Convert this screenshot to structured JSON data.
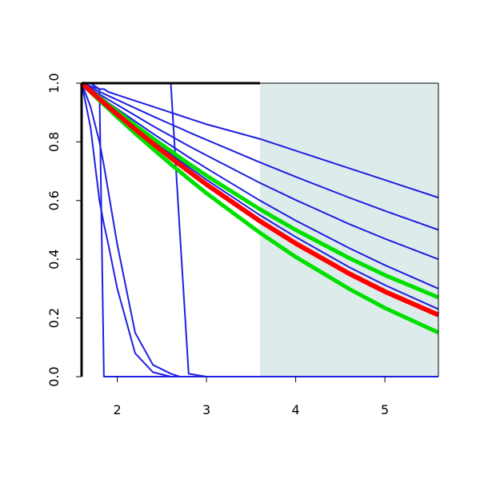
{
  "chart_data": {
    "type": "line",
    "x": [
      1.6,
      1.7,
      1.8,
      1.85,
      1.9,
      2.0,
      2.2,
      2.4,
      2.6,
      2.7,
      2.8,
      3.0,
      3.6,
      4.0,
      4.6,
      5.0,
      5.6
    ],
    "series": [
      {
        "color": "#1f1fe0",
        "width": 2,
        "values": [
          1,
          0.99,
          0.98,
          0.98,
          0.97,
          0.96,
          0.94,
          0.92,
          0.9,
          0.89,
          0.88,
          0.86,
          0.81,
          0.77,
          0.71,
          0.67,
          0.61
        ]
      },
      {
        "color": "#1f1fe0",
        "width": 2,
        "values": [
          1,
          0.986,
          0.971,
          0.964,
          0.957,
          0.943,
          0.915,
          0.887,
          0.86,
          0.847,
          0.833,
          0.807,
          0.73,
          0.681,
          0.61,
          0.565,
          0.5
        ]
      },
      {
        "color": "#1f1fe0",
        "width": 2,
        "values": [
          1,
          0.981,
          0.962,
          0.953,
          0.944,
          0.926,
          0.89,
          0.854,
          0.82,
          0.803,
          0.786,
          0.754,
          0.66,
          0.602,
          0.52,
          0.47,
          0.4
        ]
      },
      {
        "color": "#1f1fe0",
        "width": 2,
        "values": [
          1,
          0.978,
          0.956,
          0.945,
          0.933,
          0.912,
          0.87,
          0.828,
          0.788,
          0.768,
          0.748,
          0.71,
          0.6,
          0.532,
          0.438,
          0.38,
          0.3
        ]
      },
      {
        "color": "#1f1fe0",
        "width": 2,
        "values": [
          1,
          0.974,
          0.949,
          0.937,
          0.924,
          0.9,
          0.851,
          0.804,
          0.759,
          0.736,
          0.714,
          0.671,
          0.55,
          0.476,
          0.373,
          0.312,
          0.23
        ]
      },
      {
        "color": "#1f1fe0",
        "width": 2,
        "values": [
          1,
          1,
          1,
          1,
          1,
          1,
          1,
          1,
          1,
          0.5,
          0.01,
          0,
          0,
          0,
          0,
          0,
          0
        ]
      },
      {
        "color": "#1f1fe0",
        "width": 2,
        "values": [
          1,
          1,
          0.98,
          0,
          0,
          0,
          0,
          0,
          0,
          0,
          0,
          0,
          0,
          0,
          0,
          0,
          0
        ]
      },
      {
        "color": "#1f1fe0",
        "width": 2,
        "values": [
          1,
          0.85,
          0.6,
          0.52,
          0.45,
          0.3,
          0.08,
          0.015,
          0,
          0,
          0,
          0,
          0,
          0,
          0,
          0,
          0
        ]
      },
      {
        "color": "#1f1fe0",
        "width": 2,
        "values": [
          1,
          0.92,
          0.8,
          0.72,
          0.63,
          0.45,
          0.15,
          0.04,
          0.01,
          0,
          0,
          0,
          0,
          0,
          0,
          0,
          0
        ]
      },
      {
        "color": "#00e000",
        "width": 5,
        "values": [
          1,
          0.975,
          0.951,
          0.939,
          0.927,
          0.904,
          0.857,
          0.812,
          0.769,
          0.747,
          0.726,
          0.685,
          0.57,
          0.5,
          0.404,
          0.346,
          0.27
        ]
      },
      {
        "color": "#00e000",
        "width": 5,
        "values": [
          1,
          0.97,
          0.941,
          0.927,
          0.913,
          0.884,
          0.829,
          0.776,
          0.724,
          0.699,
          0.674,
          0.625,
          0.49,
          0.408,
          0.299,
          0.234,
          0.15
        ]
      },
      {
        "color": "#ff0000",
        "width": 6,
        "values": [
          1,
          0.973,
          0.946,
          0.933,
          0.92,
          0.894,
          0.843,
          0.794,
          0.746,
          0.723,
          0.7,
          0.655,
          0.53,
          0.454,
          0.351,
          0.29,
          0.21
        ]
      }
    ],
    "xlim": [
      1.6,
      5.6
    ],
    "ylim": [
      0,
      1
    ],
    "xticks": [
      2,
      3,
      4,
      5
    ],
    "yticks": [
      {
        "value": 0,
        "label": "0.0"
      },
      {
        "value": 0.2,
        "label": "0.2"
      },
      {
        "value": 0.4,
        "label": "0.4"
      },
      {
        "value": 0.6,
        "label": "0.6"
      },
      {
        "value": 0.8,
        "label": "0.8"
      },
      {
        "value": 1,
        "label": "1.0"
      }
    ],
    "shade": {
      "from": 3.6,
      "to": 5.6,
      "color": "#deebeb"
    }
  }
}
